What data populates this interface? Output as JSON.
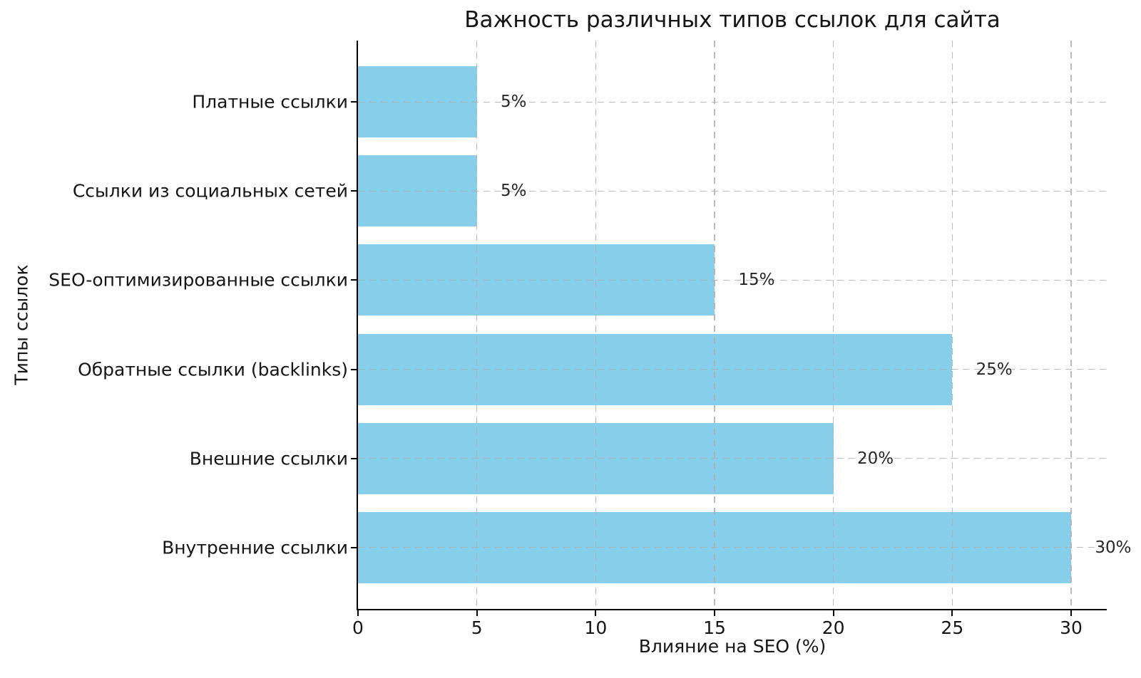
{
  "chart_data": {
    "type": "bar",
    "orientation": "horizontal",
    "title": "Важность различных типов ссылок для сайта",
    "xlabel": "Влияние на SEO (%)",
    "ylabel": "Типы ссылок",
    "categories": [
      "Платные ссылки",
      "Ссылки из социальных сетей",
      "SEO-оптимизированные ссылки",
      "Обратные ссылки (backlinks)",
      "Внешние ссылки",
      "Внутренние ссылки"
    ],
    "values": [
      5,
      5,
      15,
      25,
      20,
      30
    ],
    "value_labels": [
      "5%",
      "5%",
      "15%",
      "25%",
      "20%",
      "30%"
    ],
    "xticks": [
      0,
      5,
      10,
      15,
      20,
      25,
      30
    ],
    "xtick_labels": [
      "0",
      "5",
      "10",
      "15",
      "20",
      "25",
      "30"
    ],
    "xlim": [
      0,
      31.5
    ],
    "bar_color": "#87CEEB",
    "grid": true,
    "grid_style": "dashed",
    "grid_color": "#b0b0b0",
    "axis_color": "#000000",
    "background": "#ffffff",
    "legend": null
  }
}
